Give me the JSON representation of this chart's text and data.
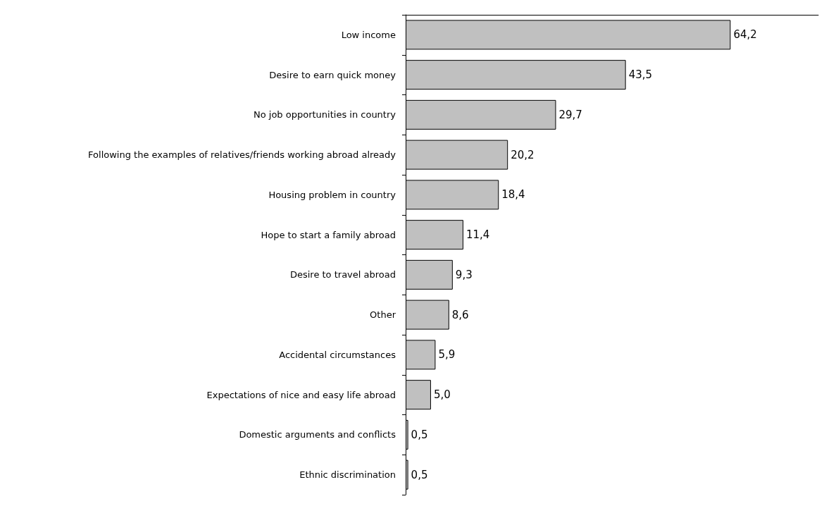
{
  "chart_data": {
    "type": "bar",
    "orientation": "horizontal",
    "categories": [
      "Low income",
      "Desire to earn quick money",
      "No job opportunities in country",
      "Following the examples of relatives/friends working abroad already",
      "Housing problem in country",
      "Hope to start a family abroad",
      "Desire to travel abroad",
      "Other",
      "Accidental circumstances",
      "Expectations of nice and easy life abroad",
      "Domestic arguments and conflicts",
      "Ethnic discrimination"
    ],
    "values": [
      64.2,
      43.5,
      29.7,
      20.2,
      18.4,
      11.4,
      9.3,
      8.6,
      5.9,
      5.0,
      0.5,
      0.5
    ],
    "value_labels": [
      "64,2",
      "43,5",
      "29,7",
      "20,2",
      "18,4",
      "11,4",
      "9,3",
      "8,6",
      "5,9",
      "5,0",
      "0,5",
      "0,5"
    ],
    "color": "#c0c0c0"
  }
}
